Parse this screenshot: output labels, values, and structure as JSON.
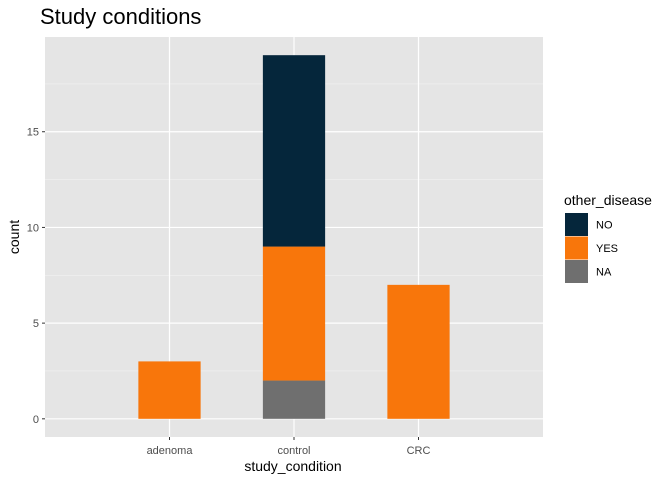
{
  "chart_data": {
    "type": "bar",
    "stacked": true,
    "title": "Study conditions",
    "xlabel": "study_condition",
    "ylabel": "count",
    "categories": [
      "adenoma",
      "control",
      "CRC"
    ],
    "series": [
      {
        "name": "NO",
        "color": "#05263b",
        "values": [
          0,
          10,
          0
        ]
      },
      {
        "name": "YES",
        "color": "#f8760b",
        "values": [
          3,
          7,
          7
        ]
      },
      {
        "name": "NA",
        "color": "#6f6f6f",
        "values": [
          0,
          2,
          0
        ]
      }
    ],
    "y_ticks": [
      0,
      5,
      10,
      15
    ],
    "ylim": [
      -0.95,
      19.95
    ],
    "grid": true,
    "panel_background": "#e5e5e5",
    "legend": {
      "title": "other_disease",
      "position": "right"
    }
  }
}
